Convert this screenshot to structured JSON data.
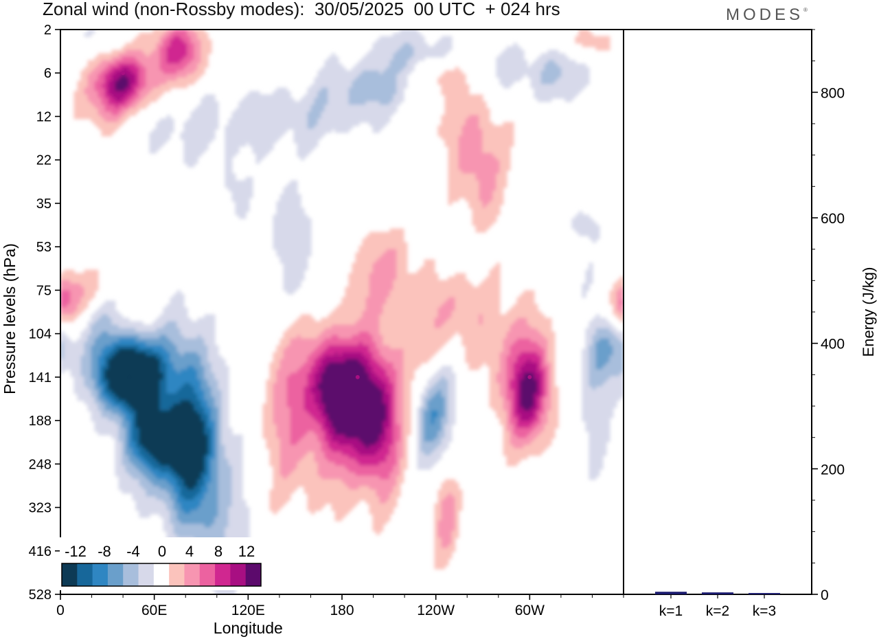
{
  "header": {
    "title": "Zonal wind (non-Rossby modes):  30/05/2025  00 UTC  + 024 hrs",
    "brand": "MODES",
    "brand_mark": "®"
  },
  "chart_data": [
    {
      "type": "heatmap",
      "title": "Zonal wind (non-Rossby modes):  30/05/2025  00 UTC  + 024 hrs",
      "xlabel": "Longitude",
      "ylabel": "Pressure levels (hPa)",
      "x_ticks": [
        "0",
        "60E",
        "120E",
        "180",
        "120W",
        "60W"
      ],
      "x_tick_degrees": [
        0,
        60,
        120,
        180,
        240,
        300
      ],
      "xlim": [
        0,
        360
      ],
      "y_ticks": [
        "2",
        "6",
        "12",
        "22",
        "35",
        "53",
        "75",
        "104",
        "141",
        "188",
        "248",
        "323",
        "416",
        "528"
      ],
      "y_scale": "model levels (pressure increasing downward)",
      "colorbar": {
        "tick_labels": [
          "-12",
          "-8",
          "-4",
          "0",
          "4",
          "8",
          "12"
        ],
        "levels": [
          -14,
          -12,
          -10,
          -8,
          -6,
          -4,
          -2,
          2,
          4,
          6,
          8,
          10,
          12,
          14
        ],
        "colors": [
          "#0d3a55",
          "#17679a",
          "#2f86c2",
          "#6a9fcb",
          "#a8bedc",
          "#d7d9ea",
          "#ffffff",
          "#fbc3bc",
          "#f795b1",
          "#ec62a0",
          "#d02790",
          "#a80f82",
          "#5c0a6c"
        ]
      },
      "features": [
        {
          "name": "easterly core",
          "lon": 44,
          "level": "141",
          "value": -14
        },
        {
          "name": "westerly core",
          "lon": 190,
          "level": "141",
          "value": 10
        },
        {
          "name": "westerly maximum",
          "lon": 300,
          "level": "141",
          "value": 10
        },
        {
          "name": "stratospheric westerly",
          "lon": 40,
          "level": "6",
          "value": 10
        }
      ]
    },
    {
      "type": "bar",
      "categories": [
        "k=1",
        "k=2",
        "k=3"
      ],
      "values": [
        3,
        2,
        1
      ],
      "ylabel": "Energy (J/kg)",
      "ylim": [
        0,
        900
      ],
      "y_ticks": [
        "0",
        "200",
        "400",
        "600",
        "800"
      ],
      "bar_color": "#1a1a6e"
    }
  ]
}
